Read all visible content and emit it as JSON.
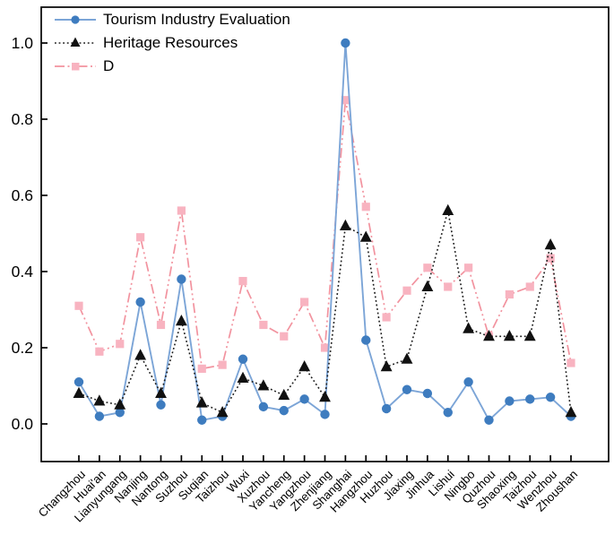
{
  "figure": {
    "background": "#ffffff",
    "axis_color": "#000000"
  },
  "chart_data": {
    "type": "line",
    "title": "",
    "xlabel": "",
    "ylabel": "",
    "grid": false,
    "legend_position": "top-left-inside",
    "categories": [
      "Changzhou",
      "Huai'an",
      "Lianyungang",
      "Nanjing",
      "Nantong",
      "Suzhou",
      "Suqian",
      "Taizhou",
      "Wuxi",
      "Xuzhou",
      "Yancheng",
      "Yangzhou",
      "Zhenjiang",
      "Shanghai",
      "Hangzhou",
      "Huzhou",
      "Jiaxing",
      "Jinhua",
      "Lishui",
      "Ningbo",
      "Quzhou",
      "Shaoxing",
      "Taizhou",
      "Wenzhou",
      "Zhoushan"
    ],
    "y_ticks": [
      0,
      0.2,
      0.4,
      0.6,
      0.8,
      1.0
    ],
    "y_tick_labels": [
      "0.0",
      "0.2",
      "0.4",
      "0.6",
      "0.8",
      "1.0"
    ],
    "ylim": [
      -0.1,
      1.095
    ],
    "series": [
      {
        "name": "Tourism Industry Evaluation",
        "marker": "circle",
        "line_style": "solid",
        "line_color": "#7CA5D7",
        "marker_color": "#3E7CBF",
        "values": [
          0.11,
          0.02,
          0.03,
          0.32,
          0.05,
          0.38,
          0.01,
          0.02,
          0.17,
          0.045,
          0.035,
          0.065,
          0.025,
          1.0,
          0.22,
          0.04,
          0.09,
          0.08,
          0.03,
          0.11,
          0.01,
          0.06,
          0.065,
          0.07,
          0.02
        ]
      },
      {
        "name": "Heritage Resources",
        "marker": "triangle",
        "line_style": "dotted",
        "line_color": "#1a1a1a",
        "marker_color": "#111111",
        "values": [
          0.08,
          0.06,
          0.05,
          0.18,
          0.08,
          0.27,
          0.055,
          0.03,
          0.12,
          0.1,
          0.075,
          0.15,
          0.07,
          0.52,
          0.49,
          0.15,
          0.17,
          0.36,
          0.56,
          0.25,
          0.23,
          0.23,
          0.23,
          0.47,
          0.03
        ]
      },
      {
        "name": "D",
        "marker": "square",
        "line_style": "dashdot",
        "line_color": "#F2939F",
        "marker_color": "#F8B3C0",
        "values": [
          0.31,
          0.19,
          0.21,
          0.49,
          0.26,
          0.56,
          0.145,
          0.155,
          0.375,
          0.26,
          0.23,
          0.32,
          0.2,
          0.85,
          0.57,
          0.28,
          0.35,
          0.41,
          0.36,
          0.41,
          0.23,
          0.34,
          0.36,
          0.435,
          0.16
        ]
      }
    ]
  }
}
